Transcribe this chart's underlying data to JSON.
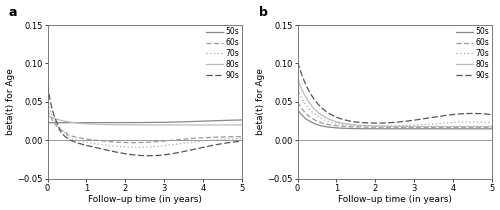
{
  "title_a": "a",
  "title_b": "b",
  "xlabel": "Follow–up time (in years)",
  "ylabel": "beta(t) for Age",
  "ylim": [
    -0.05,
    0.15
  ],
  "xlim": [
    0,
    5
  ],
  "yticks": [
    -0.05,
    0.0,
    0.05,
    0.1,
    0.15
  ],
  "xticks": [
    0,
    1,
    2,
    3,
    4,
    5
  ],
  "legend_labels": [
    "50s",
    "60s",
    "70s",
    "80s",
    "90s"
  ],
  "bg_color": "#ffffff",
  "line_styles": {
    "50s": {
      "ls": "solid",
      "lw": 0.9,
      "color": "#888888",
      "dash": null
    },
    "60s": {
      "ls": "dashed",
      "lw": 0.9,
      "color": "#999999",
      "dash": [
        4,
        2
      ]
    },
    "70s": {
      "ls": "dotted",
      "lw": 0.9,
      "color": "#aaaaaa",
      "dash": [
        1,
        2
      ]
    },
    "80s": {
      "ls": "solid",
      "lw": 0.9,
      "color": "#bbbbbb",
      "dash": null
    },
    "90s": {
      "ls": "dashed",
      "lw": 0.9,
      "color": "#555555",
      "dash": [
        5,
        2
      ]
    }
  }
}
